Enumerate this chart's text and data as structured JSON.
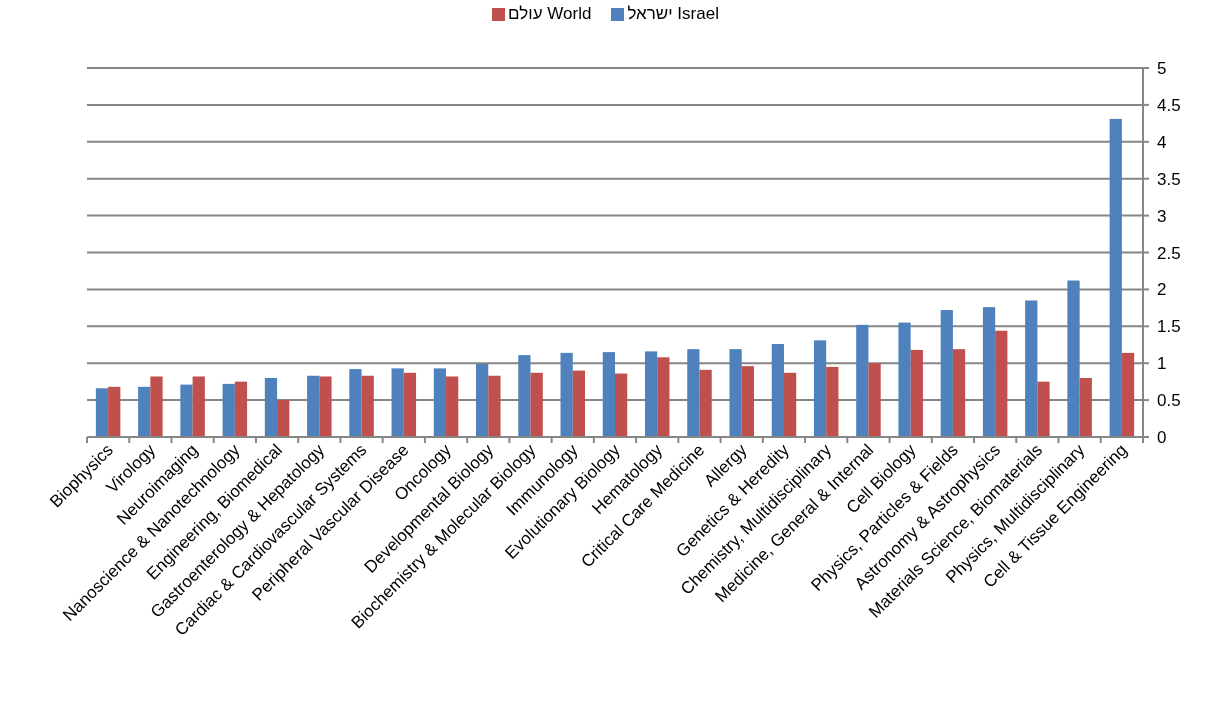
{
  "chart_data": {
    "type": "bar",
    "categories": [
      "Biophysics",
      "Virology",
      "Neuroimaging",
      "Nanoscience & Nanotechnology",
      "Engineering, Biomedical",
      "Gastroenterology & Hepatology",
      "Cardiac & Cardiovascular Systems",
      "Peripheral Vascular Disease",
      "Oncology",
      "Developmental Biology",
      "Biochemistry & Molecular Biology",
      "Immunology",
      "Evolutionary Biology",
      "Hematology",
      "Critical Care Medicine",
      "Allergy",
      "Genetics & Heredity",
      "Chemistry, Multidisciplinary",
      "Medicine, General & Internal",
      "Cell Biology",
      "Physics, Particles & Fields",
      "Astronomy & Astrophysics",
      "Materials Science, Biomaterials",
      "Physics, Multidisciplinary",
      "Cell & Tissue Engineering"
    ],
    "series": [
      {
        "name": "Israel ישראל",
        "color": "#4f81bd",
        "values": [
          0.66,
          0.68,
          0.71,
          0.72,
          0.8,
          0.83,
          0.92,
          0.93,
          0.93,
          0.99,
          1.11,
          1.14,
          1.15,
          1.16,
          1.19,
          1.19,
          1.26,
          1.31,
          1.52,
          1.55,
          1.72,
          1.76,
          1.85,
          2.12,
          4.31
        ]
      },
      {
        "name": "World עולם",
        "color": "#c0504d",
        "values": [
          0.68,
          0.82,
          0.82,
          0.75,
          0.5,
          0.82,
          0.83,
          0.87,
          0.82,
          0.83,
          0.87,
          0.9,
          0.86,
          1.08,
          0.91,
          0.96,
          0.87,
          0.95,
          1.0,
          1.18,
          1.19,
          1.44,
          0.75,
          0.8,
          1.14
        ]
      }
    ],
    "ylim": [
      0,
      5
    ],
    "yticks": [
      0,
      0.5,
      1,
      1.5,
      2,
      2.5,
      3,
      3.5,
      4,
      4.5,
      5
    ],
    "grid": "y",
    "legend": "top"
  }
}
